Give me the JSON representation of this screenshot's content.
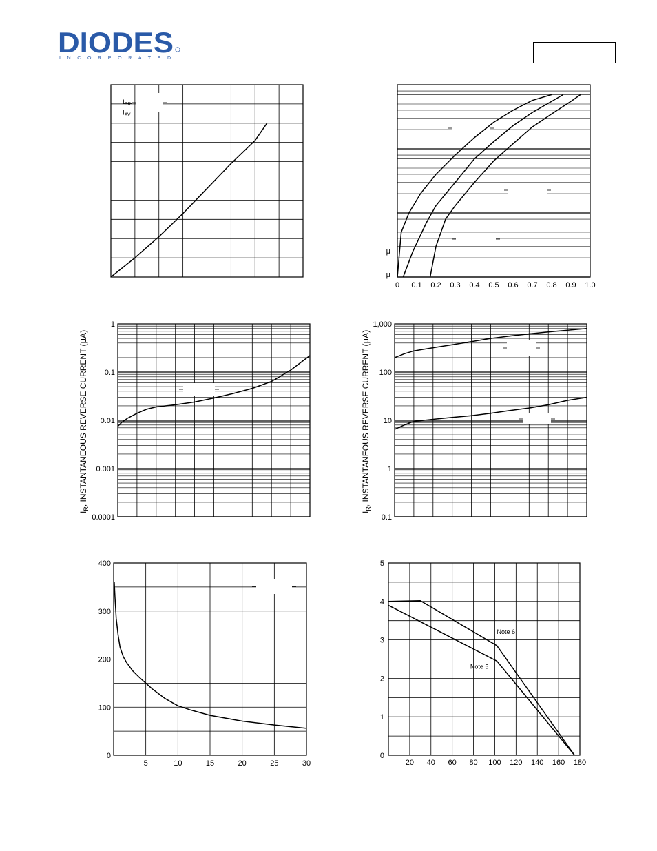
{
  "header": {
    "logo_text": "DIODES",
    "logo_subtext": "INCORPORATED",
    "logo_color": "#2a5aa8",
    "part_number": ""
  },
  "chart_data": [
    {
      "id": "c1",
      "type": "line",
      "xlim": [
        0,
        8
      ],
      "ylim": [
        0,
        10
      ],
      "grid": {
        "x_count": 8,
        "y_count": 10
      },
      "series": [
        {
          "x": [
            0,
            1,
            2,
            3,
            4,
            5,
            6,
            6.5
          ],
          "y": [
            0,
            1.0,
            2.1,
            3.3,
            4.6,
            5.9,
            7.1,
            8.0
          ]
        }
      ],
      "annotations": [
        {
          "text": "I",
          "sub": "PK",
          "x": 0.55,
          "y": 9.1
        },
        {
          "text": "I",
          "sub": "AV",
          "x": 0.55,
          "y": 8.55
        }
      ]
    },
    {
      "id": "c2",
      "type": "line",
      "yscale": "log",
      "xlim": [
        0,
        1.0
      ],
      "ylim": [
        0.1,
        100
      ],
      "x_ticks": [
        {
          "value": 0,
          "label": "0"
        },
        {
          "value": 0.1,
          "label": "0.1"
        },
        {
          "value": 0.2,
          "label": "0.2"
        },
        {
          "value": 0.3,
          "label": "0.3"
        },
        {
          "value": 0.4,
          "label": "0.4"
        },
        {
          "value": 0.5,
          "label": "0.5"
        },
        {
          "value": 0.6,
          "label": "0.6"
        },
        {
          "value": 0.7,
          "label": "0.7"
        },
        {
          "value": 0.8,
          "label": "0.8"
        },
        {
          "value": 0.9,
          "label": "0.9"
        },
        {
          "value": 1.0,
          "label": "1.0"
        }
      ],
      "y_ticks": [
        {
          "value": 0.2,
          "label": "μ"
        },
        {
          "value": 0.1,
          "label": "μ"
        }
      ],
      "series": [
        {
          "x": [
            0,
            0.02,
            0.06,
            0.12,
            0.2,
            0.3,
            0.4,
            0.5,
            0.6,
            0.7,
            0.8
          ],
          "y": [
            0.1,
            0.5,
            1.0,
            2.0,
            4.0,
            8.0,
            15,
            26,
            40,
            57,
            70
          ]
        },
        {
          "x": [
            0.03,
            0.08,
            0.15,
            0.2,
            0.3,
            0.4,
            0.5,
            0.6,
            0.7,
            0.8,
            0.86
          ],
          "y": [
            0.1,
            0.25,
            0.7,
            1.3,
            3.0,
            7.0,
            13,
            23,
            37,
            55,
            70
          ]
        },
        {
          "x": [
            0.17,
            0.2,
            0.25,
            0.3,
            0.4,
            0.5,
            0.6,
            0.7,
            0.8,
            0.9,
            0.95
          ],
          "y": [
            0.1,
            0.3,
            0.8,
            1.3,
            3.0,
            6.5,
            12,
            22,
            35,
            55,
            70
          ]
        }
      ]
    },
    {
      "id": "c3",
      "type": "line",
      "yscale": "log",
      "xlim": [
        0,
        10
      ],
      "ylim": [
        0.0001,
        1
      ],
      "x_grid_count": 10,
      "y_ticks": [
        {
          "value": 1,
          "label": "1"
        },
        {
          "value": 0.1,
          "label": "0.1"
        },
        {
          "value": 0.01,
          "label": "0.01"
        },
        {
          "value": 0.001,
          "label": "0.001"
        },
        {
          "value": 0.0001,
          "label": "0.0001"
        }
      ],
      "ylabel": "I​R, INSTANTANEOUS REVERSE CURRENT (μA)",
      "ylabel_main": "I",
      "ylabel_sub": "R",
      "ylabel_rest": ", INSTANTANEOUS REVERSE CURRENT (",
      "ylabel_mu": "μ",
      "ylabel_end": "A)",
      "series": [
        {
          "x": [
            0,
            0.2,
            0.5,
            1,
            1.5,
            2,
            3,
            4,
            5,
            6,
            7,
            8,
            9,
            10
          ],
          "y": [
            0.0075,
            0.009,
            0.011,
            0.014,
            0.017,
            0.019,
            0.021,
            0.024,
            0.029,
            0.036,
            0.046,
            0.064,
            0.11,
            0.22
          ]
        }
      ]
    },
    {
      "id": "c4",
      "type": "line",
      "yscale": "log",
      "xlim": [
        0,
        10
      ],
      "ylim": [
        0.1,
        1000
      ],
      "x_grid_count": 10,
      "y_ticks": [
        {
          "value": 1000,
          "label": "1,000"
        },
        {
          "value": 100,
          "label": "100"
        },
        {
          "value": 10,
          "label": "10"
        },
        {
          "value": 1,
          "label": "1"
        },
        {
          "value": 0.1,
          "label": "0.1"
        }
      ],
      "ylabel_main": "I",
      "ylabel_sub": "R",
      "ylabel_rest": ", INSTANTANEOUS REVERSE CURRENT (",
      "ylabel_mu": "μ",
      "ylabel_end": "A)",
      "series": [
        {
          "x": [
            0,
            0.5,
            1,
            2,
            3,
            4,
            5,
            6,
            7,
            8,
            9,
            10
          ],
          "y": [
            200,
            240,
            275,
            320,
            370,
            430,
            500,
            560,
            620,
            680,
            740,
            800
          ]
        },
        {
          "x": [
            0,
            0.5,
            1,
            2,
            3,
            4,
            5,
            6,
            7,
            8,
            9,
            10
          ],
          "y": [
            6.5,
            8.0,
            9.5,
            10.5,
            11.5,
            12.5,
            14,
            16,
            18,
            21,
            26,
            30
          ]
        }
      ]
    },
    {
      "id": "c5",
      "type": "line",
      "xlim": [
        0,
        30
      ],
      "ylim": [
        0,
        400
      ],
      "x_grid_count": 6,
      "y_grid_count": 8,
      "x_ticks": [
        {
          "value": 5,
          "label": "5"
        },
        {
          "value": 10,
          "label": "10"
        },
        {
          "value": 15,
          "label": "15"
        },
        {
          "value": 20,
          "label": "20"
        },
        {
          "value": 25,
          "label": "25"
        },
        {
          "value": 30,
          "label": "30"
        }
      ],
      "y_ticks": [
        {
          "value": 0,
          "label": "0"
        },
        {
          "value": 100,
          "label": "100"
        },
        {
          "value": 200,
          "label": "200"
        },
        {
          "value": 300,
          "label": "300"
        },
        {
          "value": 400,
          "label": "400"
        }
      ],
      "series": [
        {
          "x": [
            0.1,
            0.2,
            0.4,
            0.7,
            1,
            1.5,
            2,
            3,
            4,
            5,
            6,
            8,
            10,
            12,
            15,
            20,
            25,
            30
          ],
          "y": [
            360,
            330,
            285,
            250,
            225,
            205,
            193,
            175,
            162,
            150,
            138,
            118,
            103,
            94,
            83,
            71,
            63,
            56
          ]
        }
      ]
    },
    {
      "id": "c6",
      "type": "line",
      "xlim": [
        0,
        180
      ],
      "ylim": [
        0,
        5
      ],
      "x_grid_count": 9,
      "y_grid_count": 10,
      "x_ticks": [
        {
          "value": 20,
          "label": "20"
        },
        {
          "value": 40,
          "label": "40"
        },
        {
          "value": 60,
          "label": "60"
        },
        {
          "value": 80,
          "label": "80"
        },
        {
          "value": 100,
          "label": "100"
        },
        {
          "value": 120,
          "label": "120"
        },
        {
          "value": 140,
          "label": "140"
        },
        {
          "value": 160,
          "label": "160"
        },
        {
          "value": 180,
          "label": "180"
        }
      ],
      "y_ticks": [
        {
          "value": 0,
          "label": "0"
        },
        {
          "value": 1,
          "label": "1"
        },
        {
          "value": 2,
          "label": "2"
        },
        {
          "value": 3,
          "label": "3"
        },
        {
          "value": 4,
          "label": "4"
        },
        {
          "value": 5,
          "label": "5"
        }
      ],
      "series": [
        {
          "name": "Note 6",
          "x": [
            0,
            30,
            102,
            175
          ],
          "y": [
            4.0,
            4.02,
            2.85,
            0
          ]
        },
        {
          "name": "Note 5",
          "x": [
            0,
            102,
            175
          ],
          "y": [
            3.9,
            2.45,
            0
          ]
        }
      ],
      "annotations": [
        {
          "text": "Note 6",
          "x": 102,
          "y": 3.15
        },
        {
          "text": "Note 5",
          "x": 77,
          "y": 2.25
        }
      ]
    }
  ]
}
